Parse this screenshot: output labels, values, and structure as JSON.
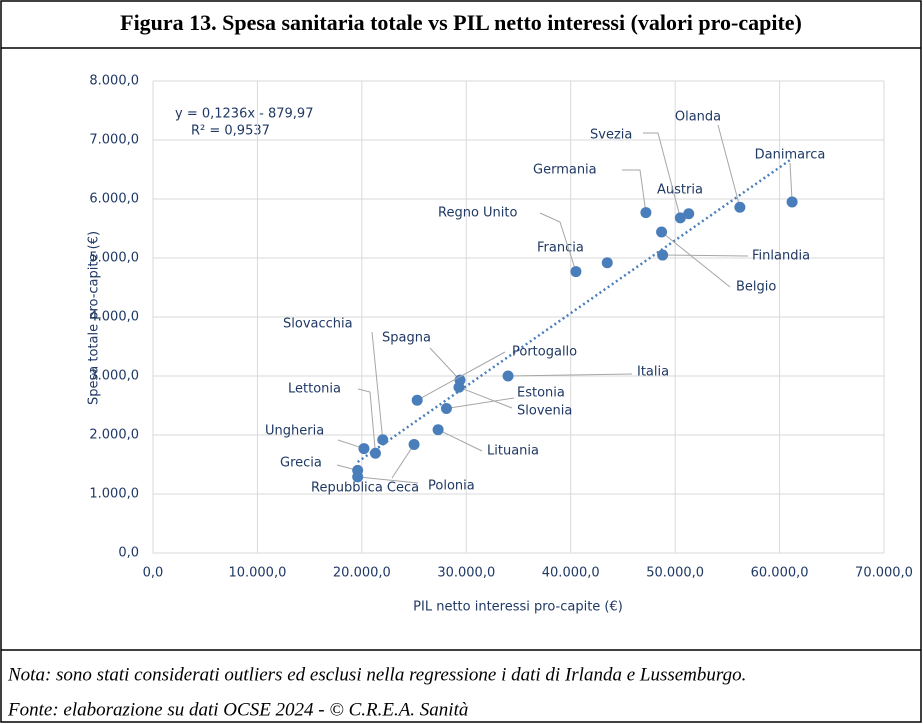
{
  "chart_data": {
    "type": "scatter",
    "title": "Figura 13. Spesa sanitaria totale vs PIL netto interessi (valori pro-capite)",
    "x_label": "PIL netto interessi pro-capite (€)",
    "y_label": "Spesa totale pro-capite (€)",
    "color": "#4a7ebb",
    "grid": true,
    "point_labels": [
      "Danimarca",
      "Olanda",
      "Austria",
      "Svezia",
      "Germania",
      "Belgio",
      "Finlandia",
      "Francia",
      "Regno Unito",
      "Italia",
      "Spagna",
      "Slovenia",
      "Portogallo",
      "Estonia",
      "Lituania",
      "Slovacchia",
      "Lettonia",
      "Ungheria",
      "Repubblica Ceca",
      "Grecia",
      "Polonia"
    ],
    "x": [
      61200,
      56200,
      51300,
      50500,
      47200,
      48700,
      48800,
      43500,
      40500,
      34000,
      29400,
      29300,
      25300,
      28100,
      27300,
      22000,
      21300,
      20200,
      25000,
      19600,
      19600
    ],
    "values": [
      5950,
      5860,
      5750,
      5680,
      5770,
      5440,
      5050,
      4920,
      4770,
      3000,
      2930,
      2810,
      2590,
      2450,
      2090,
      1920,
      1690,
      1770,
      1840,
      1400,
      1290
    ],
    "trendline": {
      "slope": 0.1236,
      "intercept": -879.97,
      "equation": "y = 0,1236x - 879,97",
      "r2": "R² = 0,9537"
    },
    "xlim": [
      0,
      70000
    ],
    "xticks": [
      {
        "value": 0,
        "label": "0,0"
      },
      {
        "value": 10000,
        "label": "10.000,0"
      },
      {
        "value": 20000,
        "label": "20.000,0"
      },
      {
        "value": 30000,
        "label": "30.000,0"
      },
      {
        "value": 40000,
        "label": "40.000,0"
      },
      {
        "value": 50000,
        "label": "50.000,0"
      },
      {
        "value": 60000,
        "label": "60.000,0"
      },
      {
        "value": 70000,
        "label": "70.000,0"
      }
    ],
    "ylim": [
      0,
      8000
    ],
    "yticks": [
      {
        "value": 0,
        "label": "0,0"
      },
      {
        "value": 1000,
        "label": "1.000,0"
      },
      {
        "value": 2000,
        "label": "2.000,0"
      },
      {
        "value": 3000,
        "label": "3.000,0"
      },
      {
        "value": 4000,
        "label": "4.000,0"
      },
      {
        "value": 5000,
        "label": "5.000,0"
      },
      {
        "value": 6000,
        "label": "6.000,0"
      },
      {
        "value": 7000,
        "label": "7.000,0"
      },
      {
        "value": 8000,
        "label": "8.000,0"
      }
    ],
    "notes": [
      "Nota: sono stati considerati outliers ed esclusi nella regressione i dati di Irlanda e Lussemburgo.",
      "Fonte: elaborazione su dati OCSE 2024 - © C.R.E.A. Sanità"
    ]
  }
}
